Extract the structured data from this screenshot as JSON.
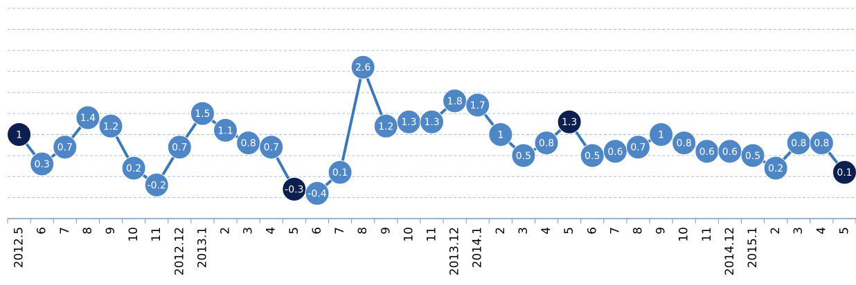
{
  "chart_data": {
    "type": "line",
    "categories": [
      "2012.5",
      "6",
      "7",
      "8",
      "9",
      "10",
      "11",
      "2012.12",
      "2013.1",
      "2",
      "3",
      "4",
      "5",
      "6",
      "7",
      "8",
      "9",
      "10",
      "11",
      "2013.12",
      "2014.1",
      "2",
      "3",
      "4",
      "5",
      "6",
      "7",
      "8",
      "9",
      "10",
      "11",
      "2014.12",
      "2015.1",
      "2",
      "3",
      "4",
      "5"
    ],
    "series": [
      {
        "color": "#3b79b8",
        "values": [
          1,
          0.3,
          0.7,
          1.4,
          1.2,
          0.2,
          -0.2,
          0.7,
          1.5,
          1.1,
          0.8,
          0.7,
          -0.3,
          -0.4,
          0.1,
          2.6,
          1.2,
          1.3,
          1.3,
          1.8,
          1.7,
          1,
          0.5,
          0.8,
          1.3,
          0.5,
          0.6,
          0.7,
          1,
          0.8,
          0.6,
          0.6,
          0.5,
          0.2,
          0.8,
          0.8,
          0.1
        ],
        "point_colors": [
          "#0d1f4e",
          "#4f86c6",
          "#4f86c6",
          "#4f86c6",
          "#4f86c6",
          "#4f86c6",
          "#4f86c6",
          "#4f86c6",
          "#4f86c6",
          "#4f86c6",
          "#4f86c6",
          "#4f86c6",
          "#0d1f4e",
          "#4f86c6",
          "#4f86c6",
          "#4f86c6",
          "#4f86c6",
          "#4f86c6",
          "#4f86c6",
          "#4f86c6",
          "#4f86c6",
          "#4f86c6",
          "#4f86c6",
          "#4f86c6",
          "#0d1f4e",
          "#4f86c6",
          "#4f86c6",
          "#4f86c6",
          "#4f86c6",
          "#4f86c6",
          "#4f86c6",
          "#4f86c6",
          "#4f86c6",
          "#4f86c6",
          "#4f86c6",
          "#4f86c6",
          "#0d1f4e"
        ]
      }
    ],
    "ylim": [
      -1,
      4.2
    ],
    "yticks": [
      -0.5,
      0,
      0.5,
      1,
      1.5,
      2,
      2.5,
      3,
      3.5,
      4
    ],
    "grid": true
  }
}
